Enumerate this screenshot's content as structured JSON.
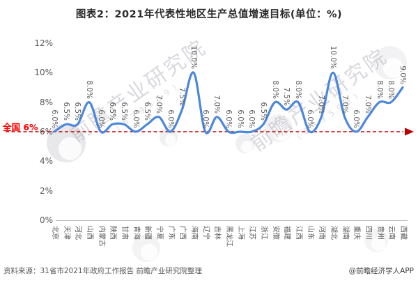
{
  "title": "图表2：2021年代表性地区生产总值增速目标(单位：%)",
  "chart_data": {
    "type": "line",
    "title": "图表2：2021年代表性地区生产总值增速目标(单位：%)",
    "categories": [
      "北京",
      "天津",
      "河北",
      "山西",
      "内蒙古",
      "陕西",
      "甘肃",
      "青海",
      "新疆",
      "宁夏",
      "广东",
      "广西",
      "海南",
      "辽宁",
      "吉林",
      "黑龙江",
      "上海",
      "江苏",
      "浙江",
      "安徽",
      "福建",
      "江西",
      "山东",
      "河南",
      "湖北",
      "湖南",
      "重庆",
      "四川",
      "贵州",
      "云南",
      "西藏"
    ],
    "values": [
      6.0,
      6.5,
      6.5,
      8.0,
      6.0,
      6.5,
      6.5,
      6.0,
      6.5,
      7.0,
      6.0,
      7.5,
      10.0,
      6.0,
      7.0,
      6.0,
      6.0,
      6.0,
      6.5,
      8.0,
      7.5,
      8.0,
      6.0,
      7.0,
      10.0,
      7.0,
      6.0,
      7.0,
      8.0,
      8.0,
      9.0
    ],
    "data_labels": [
      "6.0%",
      "6.5%",
      "6.5%",
      "8.0%",
      "6.0%",
      "6.5%",
      "6.5%",
      "6.0%",
      "6.5%",
      "7.0%",
      "6.0%",
      "7.5%",
      "10.0%",
      "6.0%",
      "7.0%",
      "6.0%",
      "6.0%",
      "6.0%",
      "6.5%",
      "8.0%",
      "7.5%",
      "8.0%",
      "6.0%",
      "7.0%",
      "10.0%",
      "7.0%",
      "6.0%",
      "7.0%",
      "8.0%",
      "8.0%",
      "9.0%"
    ],
    "ylim": [
      0,
      12
    ],
    "y_tick_values": [
      0,
      2,
      4,
      6,
      8,
      10,
      12
    ],
    "y_tick_labels": [
      "0%",
      "2%",
      "4%",
      "6%",
      "8%",
      "10%",
      "12%"
    ],
    "grid": "off",
    "legend": "none",
    "line_color": "#4C87DD",
    "reference_line": {
      "value": 6,
      "label": "全国 6%",
      "line_color": "#C00000",
      "label_color": "#FF0000",
      "style": "dashed-arrow"
    }
  },
  "footer": {
    "source": "资料来源：31省市2021年政府工作报告 前瞻产业研究院整理",
    "credit": "@前瞻经济学人APP"
  },
  "watermark": {
    "text": "前瞻产业研究院",
    "digits": "(839599)"
  }
}
